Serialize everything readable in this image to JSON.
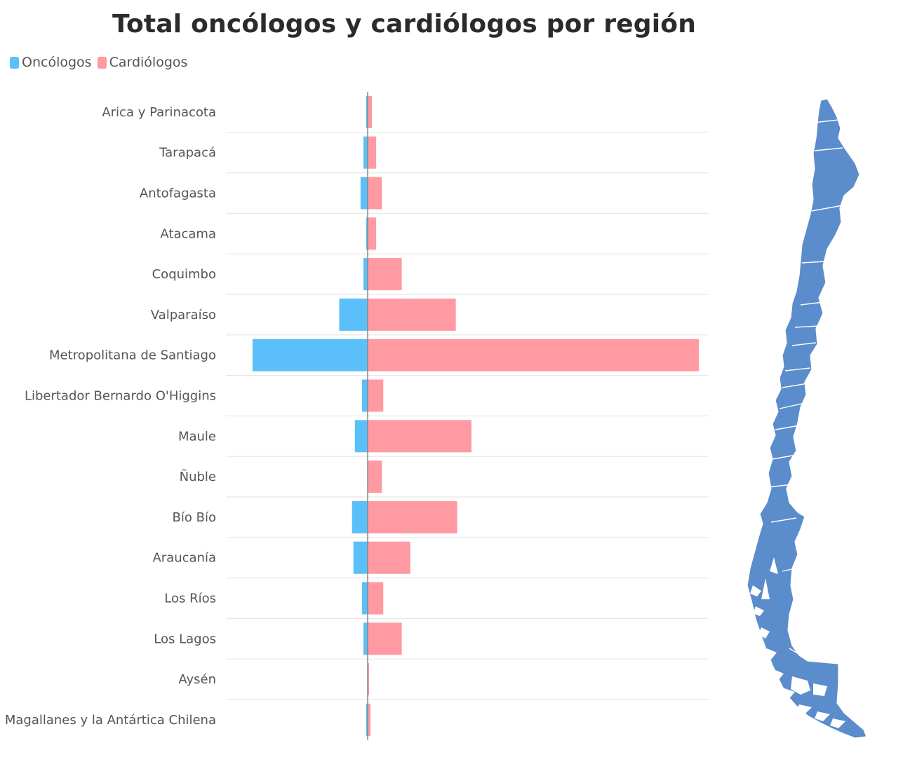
{
  "chart_data": {
    "type": "bar",
    "orientation": "horizontal-diverging",
    "title": "Total oncólogos y cardiólogos por región",
    "categories": [
      "Arica y Parinacota",
      "Tarapacá",
      "Antofagasta",
      "Atacama",
      "Coquimbo",
      "Valparaíso",
      "Metropolitana de Santiago",
      "Libertador Bernardo O'Higgins",
      "Maule",
      "Ñuble",
      "Bío Bío",
      "Araucanía",
      "Los Ríos",
      "Los Lagos",
      "Aysén",
      "Magallanes y la Antártica Chilena"
    ],
    "series": [
      {
        "name": "Oncólogos",
        "color": "#5bc0fa",
        "direction": "left",
        "values": [
          1,
          3,
          5,
          1,
          3,
          20,
          81,
          4,
          9,
          0,
          11,
          10,
          4,
          3,
          0,
          1
        ]
      },
      {
        "name": "Cardiólogos",
        "color": "#ff9aa2",
        "direction": "right",
        "values": [
          3,
          6,
          10,
          6,
          24,
          62,
          233,
          11,
          73,
          10,
          63,
          30,
          11,
          24,
          1,
          2
        ]
      }
    ],
    "xlim": [
      -81,
      233
    ],
    "grid": "horizontal separators",
    "legend_position": "top-left"
  },
  "map": {
    "color": "#5b8ccc",
    "icon": "chile-regions-map-icon"
  }
}
